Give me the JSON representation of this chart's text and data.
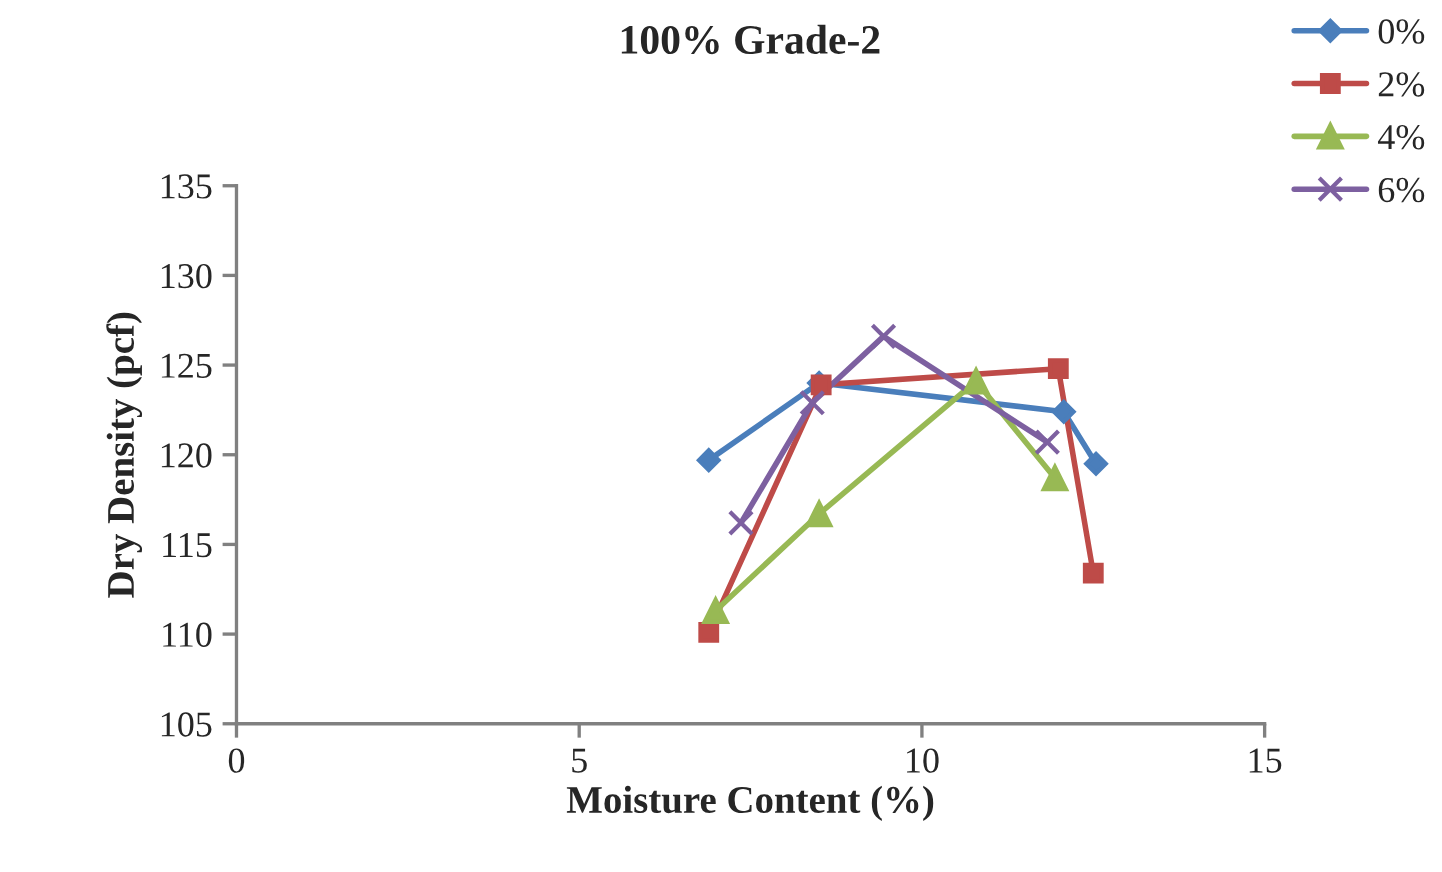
{
  "chart_data": {
    "type": "line",
    "title": "100% Grade-2",
    "xlabel": "Moisture Content (%)",
    "ylabel": "Dry Density (pcf)",
    "xlim": [
      0,
      15
    ],
    "xticks": [
      0,
      5,
      10,
      15
    ],
    "ylim": [
      105,
      135
    ],
    "yticks": [
      105,
      110,
      115,
      120,
      125,
      130,
      135
    ],
    "grid": false,
    "legend": "top right",
    "line_style": "solid",
    "series": [
      {
        "name": "0%",
        "color": "#4a7ebb",
        "marker": "diamond",
        "x": [
          6.89,
          8.5,
          12.07,
          12.54
        ],
        "values": [
          119.7,
          124.0,
          122.4,
          119.5
        ]
      },
      {
        "name": "2%",
        "color": "#be4b48",
        "marker": "square",
        "x": [
          6.89,
          8.53,
          11.99,
          12.5
        ],
        "values": [
          110.1,
          123.9,
          124.8,
          113.4
        ]
      },
      {
        "name": "4%",
        "color": "#98b954",
        "marker": "triangle",
        "x": [
          6.99,
          8.5,
          10.79,
          11.94
        ],
        "values": [
          111.3,
          116.7,
          124.1,
          118.7
        ]
      },
      {
        "name": "6%",
        "color": "#7d60a0",
        "marker": "cross",
        "x": [
          7.36,
          8.4,
          9.44,
          11.83
        ],
        "values": [
          116.2,
          122.9,
          126.6,
          120.7
        ]
      }
    ]
  }
}
